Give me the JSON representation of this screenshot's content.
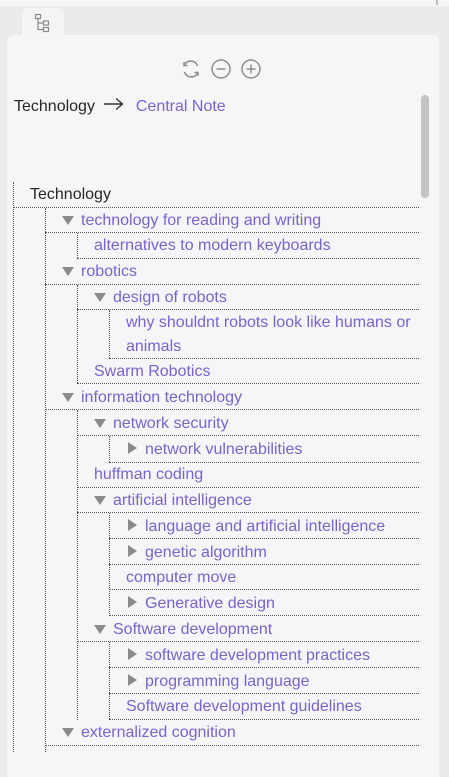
{
  "tab": {
    "icon": "tree-structure-icon"
  },
  "controls": [
    {
      "name": "refresh-icon"
    },
    {
      "name": "zoom-out-icon"
    },
    {
      "name": "zoom-in-icon"
    }
  ],
  "breadcrumb": {
    "from": "Technology",
    "to": "Central Note"
  },
  "tree": {
    "root": "Technology",
    "items": [
      "technology for reading and writing",
      "alternatives to modern keyboards",
      "robotics",
      "design of robots",
      "why shouldnt robots look like humans or animals",
      "Swarm Robotics",
      "information technology",
      "network security",
      "network vulnerabilities",
      "huffman coding",
      "artificial intelligence",
      "language and artificial intelligence",
      "genetic algorithm",
      "computer move",
      "Generative design",
      "Software development",
      "software development practices",
      "programming language",
      "Software development guidelines",
      "externalized cognition"
    ]
  },
  "colors": {
    "link": "#7a63c9",
    "text": "#262626",
    "triangle": "#8b8b8b"
  }
}
